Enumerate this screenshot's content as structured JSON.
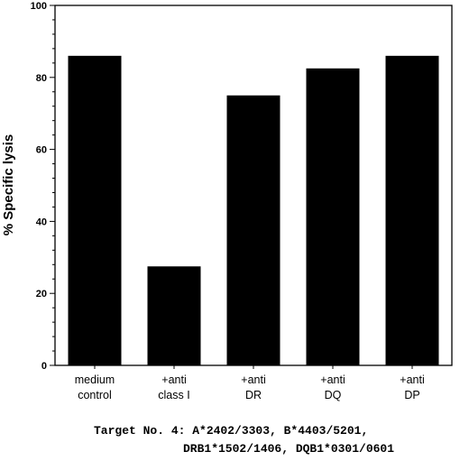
{
  "chart_data": {
    "type": "bar",
    "categories": [
      [
        "medium",
        "control"
      ],
      [
        "+anti",
        "class I"
      ],
      [
        "+anti",
        "DR"
      ],
      [
        "+anti",
        "DQ"
      ],
      [
        "+anti",
        "DP"
      ]
    ],
    "values": [
      86,
      27.5,
      75,
      82.5,
      86
    ],
    "ylabel": "% Specific lysis",
    "ylim": [
      0,
      100
    ],
    "yticks": [
      0,
      20,
      40,
      60,
      80,
      100
    ],
    "yticks_minor_step": 4,
    "grid": false,
    "legend": "none",
    "bar_color": "#000000"
  },
  "caption": {
    "line1": "Target No. 4: A*2402/3303, B*4403/5201,",
    "line2": "DRB1*1502/1406, DQB1*0301/0601"
  }
}
